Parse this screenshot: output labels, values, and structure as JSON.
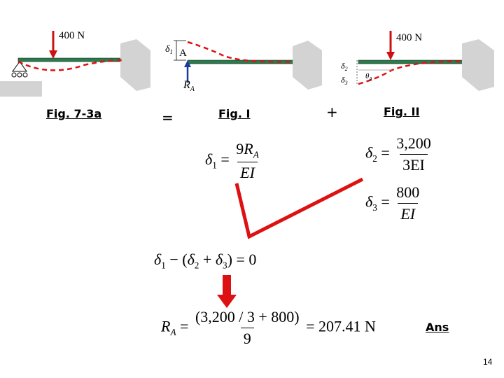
{
  "slide": {
    "page_number": "14",
    "ans_label": "Ans"
  },
  "figures": {
    "fig_7_3a": {
      "caption": "Fig. 7-3a",
      "load": "400 N"
    },
    "equals": "=",
    "fig_1": {
      "caption": "Fig. I",
      "delta1": "δ",
      "delta1_sub": "1",
      "point": "A",
      "reaction": "R",
      "reaction_sub": "A"
    },
    "plus": "+",
    "fig_2": {
      "caption": "Fig. II",
      "load": "400 N",
      "delta2": "δ",
      "delta2_sub": "2",
      "delta3": "δ",
      "delta3_sub": "3",
      "theta": "θ",
      "theta_sub": "A"
    }
  },
  "equations": {
    "eq1": {
      "lhs": "δ",
      "lhs_sub": "1",
      "eq": "=",
      "num_a": "9",
      "num_b": "R",
      "num_sub": "A",
      "den": "EI"
    },
    "eq2": {
      "lhs": "δ",
      "lhs_sub": "2",
      "eq": "=",
      "num": "3,200",
      "den": "3EI"
    },
    "eq3": {
      "lhs": "δ",
      "lhs_sub": "3",
      "eq": "=",
      "num": "800",
      "den": "EI"
    },
    "compat": {
      "a": "δ",
      "a_sub": "1",
      "mid": " − (",
      "b": "δ",
      "b_sub": "2",
      "plus": " + ",
      "c": "δ",
      "c_sub": "3",
      "end": ") = 0"
    },
    "result": {
      "lhs": "R",
      "lhs_sub": "A",
      "eq": " = ",
      "num": "(3,200 / 3 + 800)",
      "den": "9",
      "rhs": " = 207.41 N"
    }
  },
  "colors": {
    "arrow_red": "#dd1111",
    "beam_green": "#2e7a4c",
    "support_gray": "#d3d3d3",
    "reaction_blue": "#1a3d9a"
  }
}
